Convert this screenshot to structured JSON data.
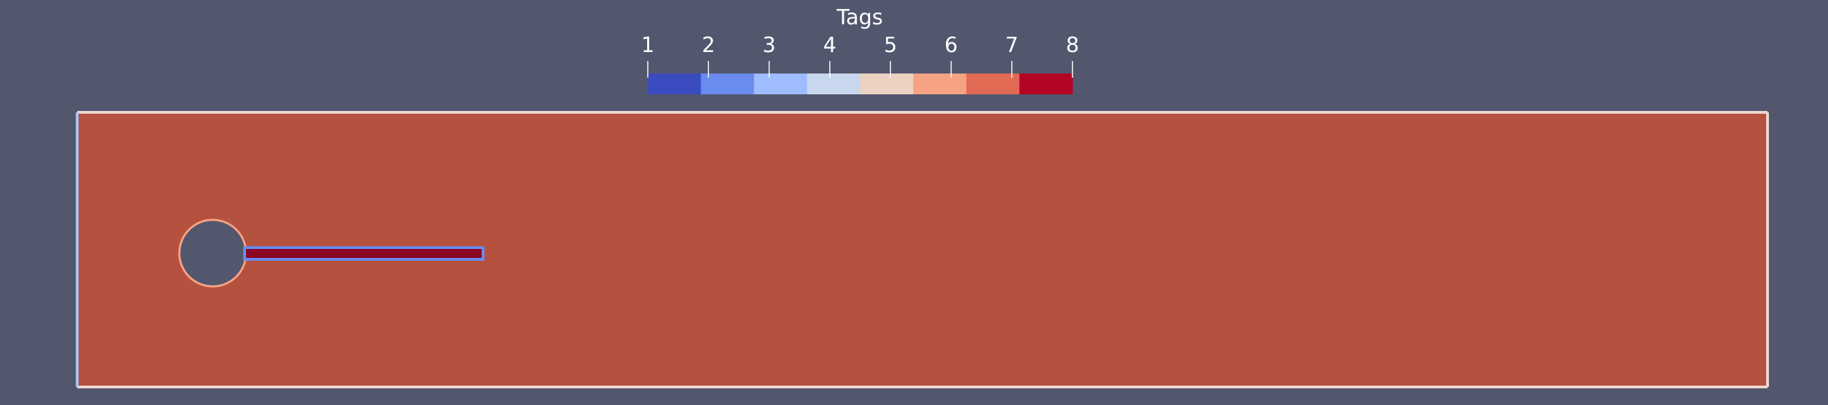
{
  "colorbar": {
    "title": "Tags",
    "ticks": [
      "1",
      "2",
      "3",
      "4",
      "5",
      "6",
      "7",
      "8"
    ],
    "colors": [
      "#3b4cc0",
      "#6a8bef",
      "#9ebcff",
      "#c9d7ef",
      "#edd1c2",
      "#f6a384",
      "#e06a53",
      "#b40426"
    ]
  },
  "colors": {
    "background": "#52576e",
    "domain_fill": "#b4523f",
    "outer_left_edge": "#a9c4f6",
    "outer_boundary": "#efd8d0",
    "cylinder_edge": "#f6a384",
    "flag_fill": "#8b0524",
    "flag_edge": "#6a8bef"
  }
}
